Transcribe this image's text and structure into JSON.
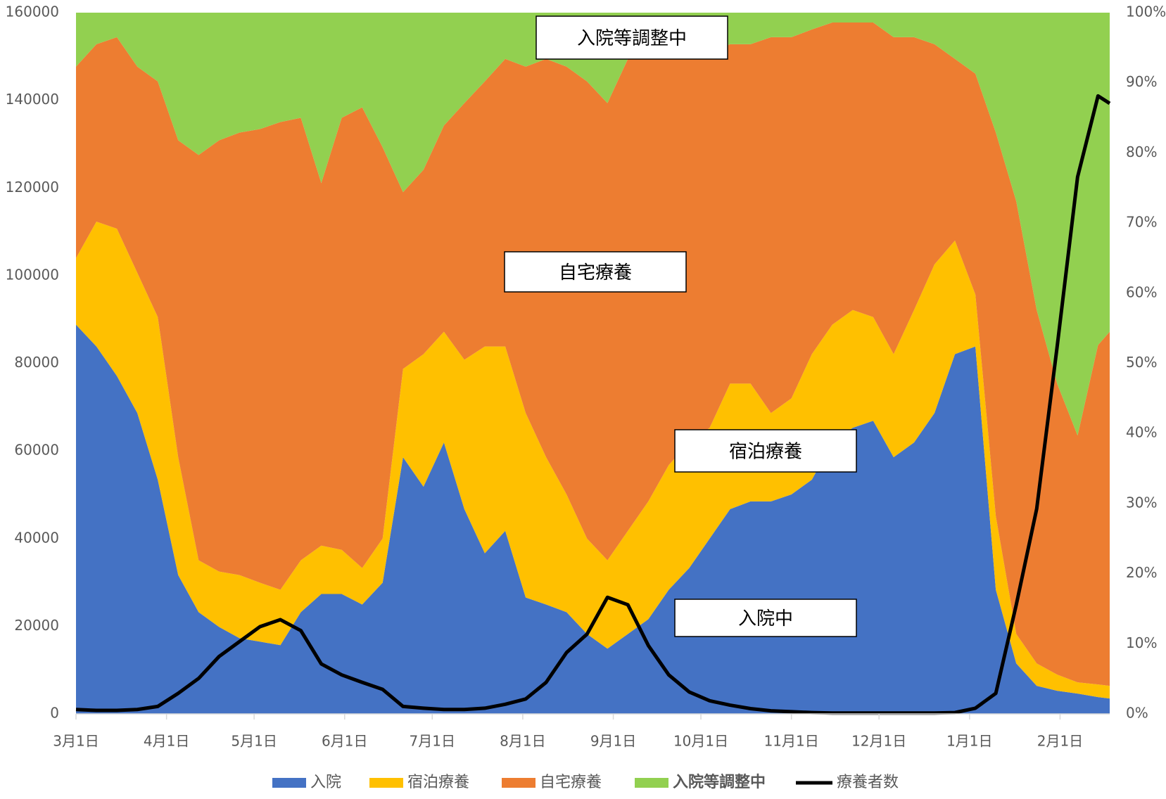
{
  "chart_data": {
    "type": "stacked_area_line",
    "x": [
      0,
      7,
      14,
      21,
      28,
      35,
      42,
      49,
      56,
      63,
      70,
      77,
      84,
      91,
      98,
      105,
      112,
      119,
      126,
      133,
      140,
      147,
      154,
      161,
      168,
      175,
      182,
      189,
      196,
      203,
      210,
      217,
      224,
      231,
      238,
      245,
      252,
      259,
      266,
      273,
      280,
      287,
      294,
      301,
      308,
      315,
      322,
      329,
      336,
      343,
      350,
      354
    ],
    "xlim": [
      0,
      354
    ],
    "xticks": [
      {
        "value": 0,
        "label": "3月1日"
      },
      {
        "value": 31,
        "label": "4月1日"
      },
      {
        "value": 61,
        "label": "5月1日"
      },
      {
        "value": 92,
        "label": "6月1日"
      },
      {
        "value": 122,
        "label": "7月1日"
      },
      {
        "value": 153,
        "label": "8月1日"
      },
      {
        "value": 184,
        "label": "9月1日"
      },
      {
        "value": 214,
        "label": "10月1日"
      },
      {
        "value": 245,
        "label": "11月1日"
      },
      {
        "value": 275,
        "label": "12月1日"
      },
      {
        "value": 306,
        "label": "1月1日"
      },
      {
        "value": 337,
        "label": "2月1日"
      }
    ],
    "ylim": [
      0,
      160000
    ],
    "yticks": [
      0,
      20000,
      40000,
      60000,
      80000,
      100000,
      120000,
      140000,
      160000
    ],
    "y2lim": [
      0,
      100
    ],
    "y2ticks": [
      {
        "value": 0,
        "label": "0%"
      },
      {
        "value": 10,
        "label": "10%"
      },
      {
        "value": 20,
        "label": "20%"
      },
      {
        "value": 30,
        "label": "30%"
      },
      {
        "value": 40,
        "label": "40%"
      },
      {
        "value": 50,
        "label": "50%"
      },
      {
        "value": 60,
        "label": "60%"
      },
      {
        "value": 70,
        "label": "70%"
      },
      {
        "value": 80,
        "label": "80%"
      },
      {
        "value": 90,
        "label": "90%"
      },
      {
        "value": 100,
        "label": "100%"
      }
    ],
    "series": [
      {
        "name": "入院",
        "color": "#4472c4",
        "axis": "y2",
        "kind": "area",
        "values": [
          55.5,
          52.4,
          48.2,
          42.9,
          33.4,
          19.8,
          14.5,
          12.4,
          10.8,
          10.3,
          9.8,
          14.5,
          17.1,
          17.1,
          15.6,
          18.7,
          36.6,
          32.4,
          38.7,
          29.2,
          22.9,
          26.1,
          16.6,
          15.6,
          14.5,
          11.4,
          9.3,
          11.4,
          13.5,
          17.7,
          20.8,
          25.0,
          29.2,
          30.3,
          30.3,
          31.3,
          33.4,
          38.7,
          40.8,
          41.8,
          36.6,
          38.7,
          42.9,
          51.3,
          52.4,
          17.7,
          7.2,
          4.0,
          3.3,
          2.9,
          2.4,
          2.2
        ]
      },
      {
        "name": "宿泊療養",
        "color": "#ffc000",
        "axis": "y2",
        "kind": "area",
        "values": [
          9.5,
          17.8,
          21.0,
          20.0,
          23.2,
          16.8,
          7.4,
          7.9,
          9.0,
          8.4,
          7.9,
          7.4,
          6.9,
          6.3,
          5.2,
          6.3,
          12.6,
          18.9,
          15.8,
          21.3,
          29.5,
          26.3,
          26.3,
          21.0,
          16.8,
          13.6,
          12.6,
          14.7,
          16.8,
          17.8,
          17.9,
          15.8,
          17.9,
          16.8,
          12.6,
          13.7,
          17.9,
          16.8,
          16.8,
          14.8,
          14.7,
          18.9,
          21.2,
          16.2,
          7.4,
          10.5,
          4.2,
          3.2,
          2.3,
          1.6,
          1.8,
          1.8
        ]
      },
      {
        "name": "自宅療養",
        "color": "#ed7d31",
        "axis": "y2",
        "kind": "area",
        "values": [
          27.3,
          25.3,
          27.3,
          29.4,
          33.6,
          45.2,
          57.8,
          61.5,
          63.1,
          64.7,
          66.7,
          63.1,
          51.7,
          61.6,
          65.7,
          55.8,
          25.2,
          26.3,
          29.4,
          36.6,
          37.8,
          41.0,
          49.4,
          56.8,
          61.0,
          65.2,
          65.2,
          67.3,
          64.1,
          60.0,
          55.7,
          53.6,
          48.4,
          48.4,
          53.6,
          51.5,
          46.3,
          43.1,
          41.0,
          42.0,
          45.2,
          38.9,
          31.4,
          25.9,
          31.5,
          54.7,
          61.7,
          50.4,
          41.5,
          35.2,
          48.4,
          50.5
        ]
      },
      {
        "name": "入院等調整中",
        "color": "#92d050",
        "axis": "y2",
        "kind": "area",
        "values": [
          7.7,
          4.5,
          3.5,
          7.7,
          9.8,
          18.2,
          20.3,
          18.2,
          17.1,
          16.6,
          15.6,
          15.0,
          24.3,
          15.0,
          13.5,
          19.2,
          25.6,
          22.4,
          16.1,
          12.9,
          9.8,
          6.6,
          7.7,
          6.6,
          7.7,
          9.8,
          12.9,
          6.6,
          5.6,
          4.5,
          5.6,
          5.6,
          4.5,
          4.5,
          3.5,
          3.5,
          2.4,
          1.4,
          1.4,
          1.4,
          3.5,
          3.5,
          4.5,
          6.6,
          8.7,
          17.1,
          26.9,
          42.4,
          52.9,
          60.3,
          47.4,
          45.5
        ]
      },
      {
        "name": "療養者数",
        "color": "#000000",
        "axis": "y",
        "kind": "line",
        "values": [
          1000,
          800,
          800,
          1000,
          1700,
          4700,
          8100,
          13100,
          16500,
          19900,
          21500,
          19000,
          11400,
          8900,
          7200,
          5600,
          1700,
          1300,
          1000,
          1000,
          1300,
          2200,
          3400,
          7200,
          14000,
          18200,
          26600,
          24900,
          15600,
          8900,
          5000,
          3000,
          2000,
          1200,
          700,
          500,
          300,
          200,
          200,
          200,
          200,
          200,
          200,
          300,
          1300,
          4700,
          24900,
          46800,
          83800,
          122500,
          141000,
          139300
        ]
      }
    ],
    "annotations": [
      "入院等調整中",
      "自宅療養",
      "宿泊療養",
      "入院中"
    ]
  }
}
